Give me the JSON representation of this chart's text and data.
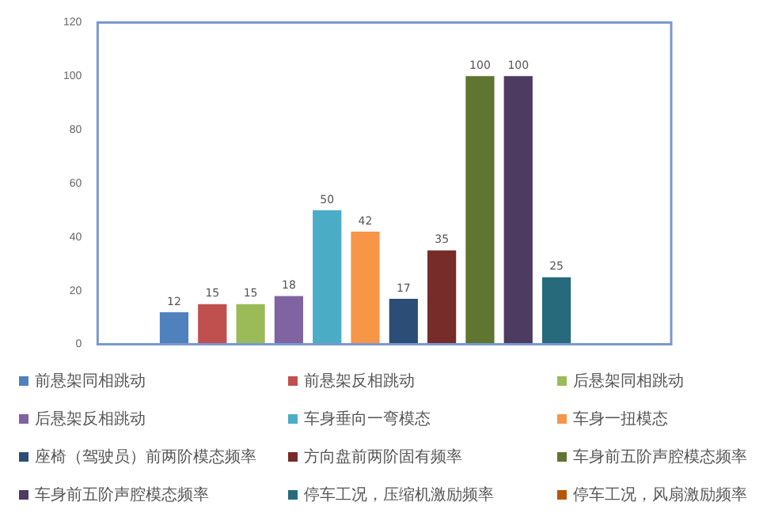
{
  "chart_data": {
    "type": "bar",
    "categories": [
      null
    ],
    "series": [
      {
        "name": "前悬架同相跳动",
        "color": "#4f81bd",
        "values": [
          12
        ]
      },
      {
        "name": "前悬架反相跳动",
        "color": "#c0504d",
        "values": [
          15
        ]
      },
      {
        "name": "后悬架同相跳动",
        "color": "#9bbb59",
        "values": [
          15
        ]
      },
      {
        "name": "后悬架反相跳动",
        "color": "#8064a2",
        "values": [
          18
        ]
      },
      {
        "name": "车身垂向一弯模态",
        "color": "#4bacc6",
        "values": [
          50
        ]
      },
      {
        "name": "车身一扭模态",
        "color": "#f79646",
        "values": [
          42
        ]
      },
      {
        "name": "座椅（驾驶员）前两阶模态频率",
        "color": "#2c4d75",
        "values": [
          17
        ]
      },
      {
        "name": "方向盘前两阶固有频率",
        "color": "#772c2a",
        "values": [
          35
        ]
      },
      {
        "name": "车身前五阶声腔模态频率",
        "color": "#5f7530",
        "values": [
          100
        ]
      },
      {
        "name": "车身前五阶声腔模态频率",
        "color": "#4d3b62",
        "values": [
          100
        ]
      },
      {
        "name": "停车工况，压缩机激励频率",
        "color": "#276a7c",
        "values": [
          25
        ]
      },
      {
        "name": "停车工况，风扇激励频率",
        "color": "#b65708",
        "values": [
          null
        ]
      }
    ],
    "ylim": [
      0,
      120
    ],
    "yticks": [
      0,
      20,
      40,
      60,
      80,
      100,
      120
    ],
    "grid": false,
    "legend": "bottom",
    "data_labels": true
  }
}
